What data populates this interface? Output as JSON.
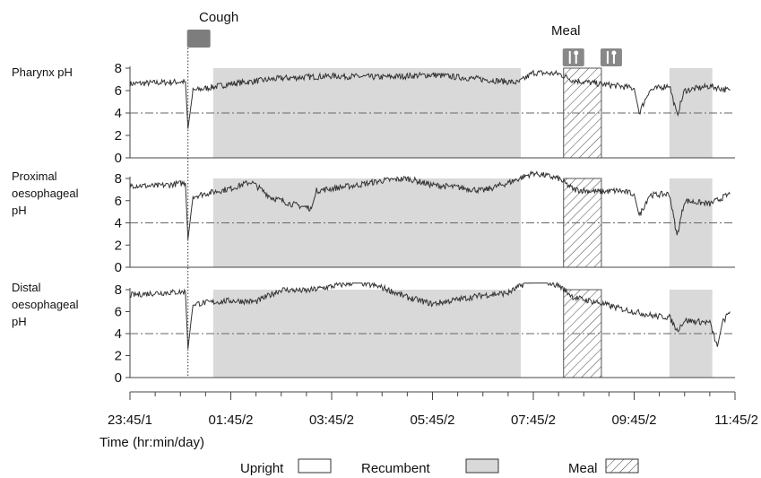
{
  "chart_data": {
    "type": "line",
    "x_axis": {
      "label": "Time (hr:min/day)",
      "ticks": [
        "23:45/1",
        "01:45/2",
        "03:45/2",
        "05:45/2",
        "07:45/2",
        "09:45/2",
        "11:45/2"
      ],
      "range_hours": [
        0,
        12
      ]
    },
    "annotations": {
      "cough_label": "Cough",
      "cough_time_hours": 1.15,
      "meal_label": "Meal",
      "meal_icon_times_hours": [
        8.6,
        9.35
      ]
    },
    "legend": {
      "upright": "Upright",
      "recumbent": "Recumbent",
      "meal": "Meal"
    },
    "periods": {
      "recumbent": [
        [
          1.65,
          7.75
        ],
        [
          10.7,
          11.55
        ]
      ],
      "meal": [
        [
          8.6,
          9.35
        ]
      ]
    },
    "threshold_ph": 4,
    "panels": [
      {
        "ylabel_lines": [
          "Pharynx pH"
        ],
        "yticks": [
          "0",
          "2",
          "4",
          "6",
          "8"
        ],
        "ylim": [
          0,
          8
        ],
        "series": [
          {
            "t": 0.0,
            "ph": 6.6
          },
          {
            "t": 0.5,
            "ph": 6.7
          },
          {
            "t": 1.1,
            "ph": 6.8
          },
          {
            "t": 1.15,
            "ph": 2.6
          },
          {
            "t": 1.25,
            "ph": 6.0
          },
          {
            "t": 2.0,
            "ph": 6.6
          },
          {
            "t": 3.0,
            "ph": 7.1
          },
          {
            "t": 4.0,
            "ph": 7.3
          },
          {
            "t": 5.0,
            "ph": 7.2
          },
          {
            "t": 6.0,
            "ph": 7.4
          },
          {
            "t": 7.0,
            "ph": 7.0
          },
          {
            "t": 7.7,
            "ph": 6.7
          },
          {
            "t": 8.0,
            "ph": 7.6
          },
          {
            "t": 8.5,
            "ph": 7.5
          },
          {
            "t": 8.8,
            "ph": 6.9
          },
          {
            "t": 9.3,
            "ph": 6.6
          },
          {
            "t": 9.7,
            "ph": 6.4
          },
          {
            "t": 10.0,
            "ph": 6.2
          },
          {
            "t": 10.1,
            "ph": 4.0
          },
          {
            "t": 10.3,
            "ph": 6.0
          },
          {
            "t": 10.7,
            "ph": 6.5
          },
          {
            "t": 10.85,
            "ph": 3.8
          },
          {
            "t": 11.0,
            "ph": 6.0
          },
          {
            "t": 11.5,
            "ph": 6.4
          },
          {
            "t": 11.9,
            "ph": 6.0
          }
        ]
      },
      {
        "ylabel_lines": [
          "Proximal",
          "oesophageal",
          "pH"
        ],
        "yticks": [
          "0",
          "2",
          "4",
          "6",
          "8"
        ],
        "ylim": [
          0,
          8
        ],
        "series": [
          {
            "t": 0.0,
            "ph": 7.4
          },
          {
            "t": 0.5,
            "ph": 7.3
          },
          {
            "t": 1.1,
            "ph": 7.6
          },
          {
            "t": 1.15,
            "ph": 2.5
          },
          {
            "t": 1.25,
            "ph": 6.4
          },
          {
            "t": 2.0,
            "ph": 7.1
          },
          {
            "t": 2.4,
            "ph": 7.7
          },
          {
            "t": 2.8,
            "ph": 6.3
          },
          {
            "t": 3.2,
            "ph": 5.7
          },
          {
            "t": 3.6,
            "ph": 5.3
          },
          {
            "t": 3.7,
            "ph": 6.9
          },
          {
            "t": 4.5,
            "ph": 7.4
          },
          {
            "t": 5.0,
            "ph": 7.8
          },
          {
            "t": 5.5,
            "ph": 8.0
          },
          {
            "t": 6.0,
            "ph": 7.4
          },
          {
            "t": 6.5,
            "ph": 7.2
          },
          {
            "t": 7.0,
            "ph": 6.9
          },
          {
            "t": 7.5,
            "ph": 7.6
          },
          {
            "t": 8.0,
            "ph": 8.5
          },
          {
            "t": 8.5,
            "ph": 8.0
          },
          {
            "t": 8.8,
            "ph": 7.0
          },
          {
            "t": 9.3,
            "ph": 6.8
          },
          {
            "t": 9.7,
            "ph": 6.9
          },
          {
            "t": 10.0,
            "ph": 6.6
          },
          {
            "t": 10.1,
            "ph": 4.6
          },
          {
            "t": 10.3,
            "ph": 6.5
          },
          {
            "t": 10.7,
            "ph": 6.6
          },
          {
            "t": 10.85,
            "ph": 2.8
          },
          {
            "t": 11.0,
            "ph": 6.0
          },
          {
            "t": 11.5,
            "ph": 5.7
          },
          {
            "t": 11.9,
            "ph": 6.6
          }
        ]
      },
      {
        "ylabel_lines": [
          "Distal",
          "oesophageal",
          "pH"
        ],
        "yticks": [
          "0",
          "2",
          "4",
          "6",
          "8"
        ],
        "ylim": [
          0,
          8
        ],
        "series": [
          {
            "t": 0.0,
            "ph": 7.5
          },
          {
            "t": 0.5,
            "ph": 7.7
          },
          {
            "t": 1.1,
            "ph": 7.8
          },
          {
            "t": 1.15,
            "ph": 2.6
          },
          {
            "t": 1.25,
            "ph": 6.7
          },
          {
            "t": 2.0,
            "ph": 7.0
          },
          {
            "t": 2.5,
            "ph": 6.9
          },
          {
            "t": 3.0,
            "ph": 8.0
          },
          {
            "t": 3.5,
            "ph": 7.9
          },
          {
            "t": 4.0,
            "ph": 8.3
          },
          {
            "t": 4.5,
            "ph": 8.7
          },
          {
            "t": 5.0,
            "ph": 8.2
          },
          {
            "t": 5.5,
            "ph": 7.3
          },
          {
            "t": 6.0,
            "ph": 6.7
          },
          {
            "t": 6.5,
            "ph": 7.1
          },
          {
            "t": 7.0,
            "ph": 7.5
          },
          {
            "t": 7.5,
            "ph": 7.7
          },
          {
            "t": 8.0,
            "ph": 9.0
          },
          {
            "t": 8.5,
            "ph": 8.4
          },
          {
            "t": 8.8,
            "ph": 7.3
          },
          {
            "t": 9.3,
            "ph": 6.8
          },
          {
            "t": 9.7,
            "ph": 6.3
          },
          {
            "t": 10.0,
            "ph": 6.0
          },
          {
            "t": 10.2,
            "ph": 5.8
          },
          {
            "t": 10.4,
            "ph": 5.6
          },
          {
            "t": 10.7,
            "ph": 5.5
          },
          {
            "t": 10.85,
            "ph": 4.3
          },
          {
            "t": 11.0,
            "ph": 5.2
          },
          {
            "t": 11.5,
            "ph": 5.0
          },
          {
            "t": 11.65,
            "ph": 2.8
          },
          {
            "t": 11.75,
            "ph": 5.0
          },
          {
            "t": 11.9,
            "ph": 6.0
          }
        ]
      }
    ]
  },
  "colors": {
    "recumbent_fill": "#d9d9d9",
    "trace": "#333333",
    "axis": "#444444",
    "threshold": "#666666",
    "meal_hatch": "#555555",
    "cough_icon": "#7d7d7d"
  },
  "icons": {
    "cough": "cough-icon",
    "meal": "meal-fork-knife-icon"
  }
}
